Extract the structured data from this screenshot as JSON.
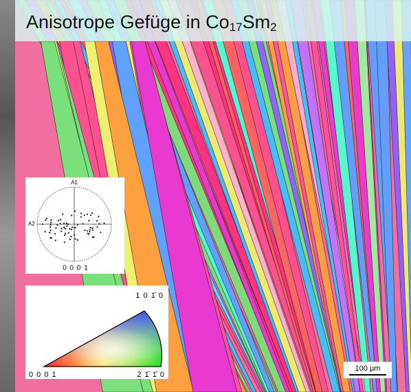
{
  "title": {
    "parts": [
      "Anisotrope Gefüge in Co",
      "17",
      "Sm",
      "2"
    ]
  },
  "pole_figure": {
    "axis_top": "A1",
    "axis_left": "A2",
    "label": "0 0 0 1"
  },
  "color_key": {
    "top_right": "1 0 1̄ 0",
    "bottom_left": "0 0 0 1",
    "bottom_right": "2 1̄ 1̄ 0"
  },
  "scale_bar": {
    "label": "100 µm"
  }
}
